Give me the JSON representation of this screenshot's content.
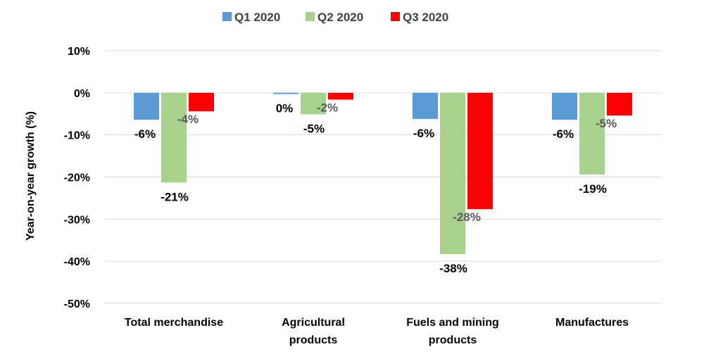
{
  "chart_data": {
    "type": "bar",
    "title": "",
    "xlabel": "",
    "ylabel": "Year-on-year growth (%)",
    "ylim": [
      -50,
      10
    ],
    "yticks": [
      10,
      0,
      -10,
      -20,
      -30,
      -40,
      -50
    ],
    "ytick_labels": [
      "10%",
      "0%",
      "-10%",
      "-20%",
      "-30%",
      "-40%",
      "-50%"
    ],
    "grid": true,
    "legend_position": "top",
    "categories": [
      [
        "Total merchandise"
      ],
      [
        "Agricultural",
        "products"
      ],
      [
        "Fuels and mining",
        "products"
      ],
      [
        "Manufactures"
      ]
    ],
    "series": [
      {
        "name": "Q1 2020",
        "color": "#5b9bd5",
        "values": [
          -6.4,
          -0.3,
          -6.2,
          -6.4
        ],
        "labels": [
          "-6%",
          "0%",
          "-6%",
          "-6%"
        ],
        "label_color": "#000000"
      },
      {
        "name": "Q2 2020",
        "color": "#a9d18e",
        "values": [
          -21.3,
          -5.1,
          -38.3,
          -19.4
        ],
        "labels": [
          "-21%",
          "-5%",
          "-38%",
          "-19%"
        ],
        "label_color": "#000000"
      },
      {
        "name": "Q3 2020",
        "color": "#ff0000",
        "values": [
          -4.4,
          -1.6,
          -27.6,
          -5.4
        ],
        "labels": [
          "-4%",
          "-2%",
          "-28%",
          "-5%"
        ],
        "label_color": "#595959"
      }
    ]
  }
}
